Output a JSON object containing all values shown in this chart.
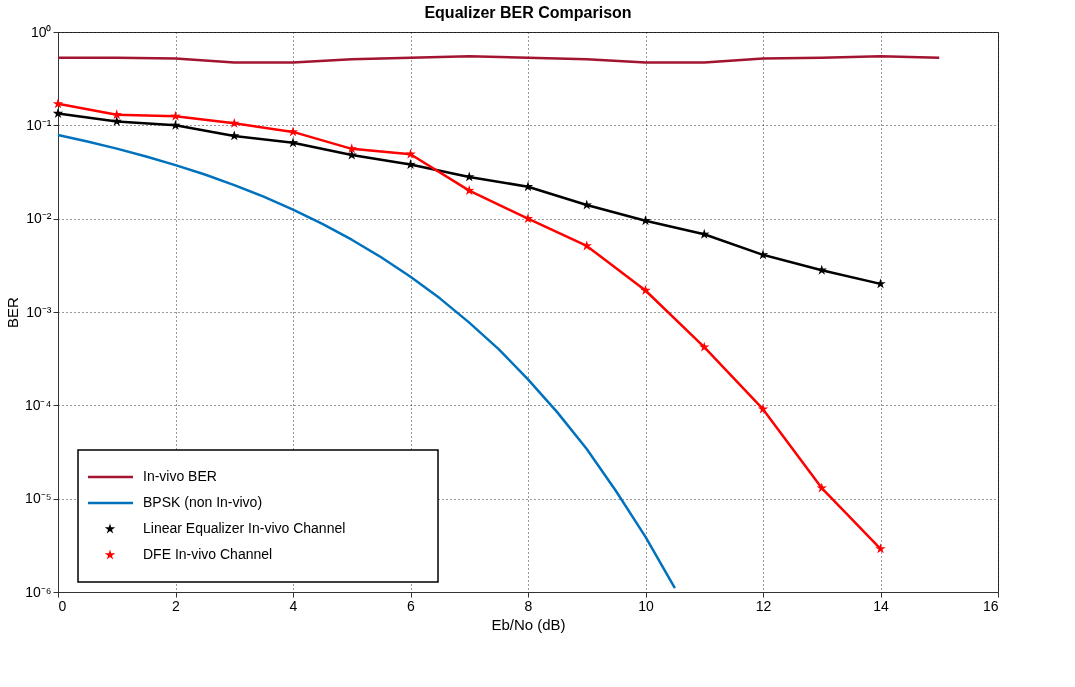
{
  "chart_data": {
    "type": "line",
    "title": "Equalizer BER Comparison",
    "xlabel": "Eb/No (dB)",
    "ylabel": "BER",
    "log": "y",
    "xlim": [
      0,
      16
    ],
    "xticks": [
      0,
      2,
      4,
      6,
      8,
      10,
      12,
      14,
      16
    ],
    "ylim": [
      1e-06,
      1
    ],
    "yticks": [
      {
        "value": 1e-06,
        "label": "10⁻⁶"
      },
      {
        "value": 1e-05,
        "label": "10⁻⁵"
      },
      {
        "value": 0.0001,
        "label": "10⁻⁴"
      },
      {
        "value": 0.001,
        "label": "10⁻³"
      },
      {
        "value": 0.01,
        "label": "10⁻²"
      },
      {
        "value": 0.1,
        "label": "10⁻¹"
      },
      {
        "value": 1,
        "label": "10⁰"
      }
    ],
    "grid": true,
    "legend": "bottom left",
    "line_style": "solid",
    "series": [
      {
        "name": "In-vivo BER",
        "color": "#a2142f",
        "marker": "none",
        "x": [
          0,
          1,
          2,
          3,
          4,
          5,
          6,
          7,
          8,
          9,
          10,
          11,
          12,
          13,
          14,
          15
        ],
        "values": [
          0.53,
          0.53,
          0.52,
          0.47,
          0.47,
          0.51,
          0.53,
          0.55,
          0.53,
          0.51,
          0.47,
          0.47,
          0.52,
          0.53,
          0.55,
          0.53
        ]
      },
      {
        "name": "BPSK (non In-vivo)",
        "color": "#0072bd",
        "marker": "none",
        "x": [
          0,
          0.5,
          1,
          1.5,
          2,
          2.5,
          3,
          3.5,
          4,
          4.5,
          5,
          5.5,
          6,
          6.5,
          7,
          7.5,
          8,
          8.5,
          9,
          9.5,
          10,
          10.5
        ],
        "values": [
          0.0786,
          0.0671,
          0.0563,
          0.0464,
          0.0375,
          0.0297,
          0.0229,
          0.0172,
          0.0125,
          0.0088,
          0.00595,
          0.00386,
          0.00239,
          0.0014,
          0.00077,
          0.0004,
          0.00019,
          8.4e-05,
          3.4e-05,
          1.2e-05,
          3.9e-06,
          1.1e-06
        ]
      },
      {
        "name": "Linear Equalizer In-vivo Channel",
        "color": "#000000",
        "marker": "star",
        "x": [
          0,
          1,
          2,
          3,
          4,
          5,
          6,
          7,
          8,
          9,
          10,
          11,
          12,
          13,
          14
        ],
        "values": [
          0.134,
          0.11,
          0.1,
          0.077,
          0.065,
          0.048,
          0.038,
          0.028,
          0.022,
          0.014,
          0.0095,
          0.0068,
          0.0041,
          0.0028,
          0.002
        ]
      },
      {
        "name": "DFE In-vivo Channel",
        "color": "#ff0000",
        "marker": "star",
        "x": [
          0,
          1,
          2,
          3,
          4,
          5,
          6,
          7,
          8,
          9,
          10,
          11,
          12,
          13,
          14
        ],
        "values": [
          0.17,
          0.13,
          0.125,
          0.105,
          0.085,
          0.056,
          0.049,
          0.02,
          0.01,
          0.0051,
          0.0017,
          0.00042,
          9.1e-05,
          1.3e-05,
          2.9e-06
        ]
      }
    ]
  }
}
